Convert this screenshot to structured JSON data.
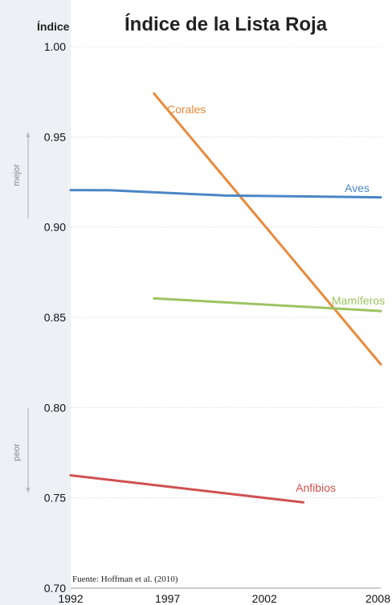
{
  "chart_data": {
    "type": "line",
    "title": "Índice de la Lista Roja",
    "ylabel": "Índice",
    "xlabel": "",
    "xlim": [
      1992,
      2008
    ],
    "ylim": [
      0.7,
      1.0
    ],
    "x_ticks": [
      "1992",
      "1997",
      "2002",
      "2008"
    ],
    "y_ticks": [
      "1.00",
      "0.95",
      "0.90",
      "0.85",
      "0.80",
      "0.75",
      "0.70"
    ],
    "grid": true,
    "legend": "inline labels",
    "side_labels": {
      "better": "mejor",
      "worse": "peor"
    },
    "source": "Fuente: Hoffman et al. (2010)",
    "series": [
      {
        "name": "Corales",
        "color": "#e88a3a",
        "x": [
          1996.3,
          2008
        ],
        "y": [
          0.974,
          0.824
        ]
      },
      {
        "name": "Aves",
        "color": "#4a86c5",
        "x": [
          1992,
          1994,
          2000,
          2008
        ],
        "y": [
          0.9205,
          0.9204,
          0.9175,
          0.9165
        ]
      },
      {
        "name": "Mamíferos",
        "color": "#9dc361",
        "x": [
          1996.3,
          2008
        ],
        "y": [
          0.8605,
          0.8535
        ]
      },
      {
        "name": "Anfibios",
        "color": "#d05050",
        "x": [
          1992,
          2004
        ],
        "y": [
          0.7625,
          0.7475
        ]
      }
    ]
  }
}
